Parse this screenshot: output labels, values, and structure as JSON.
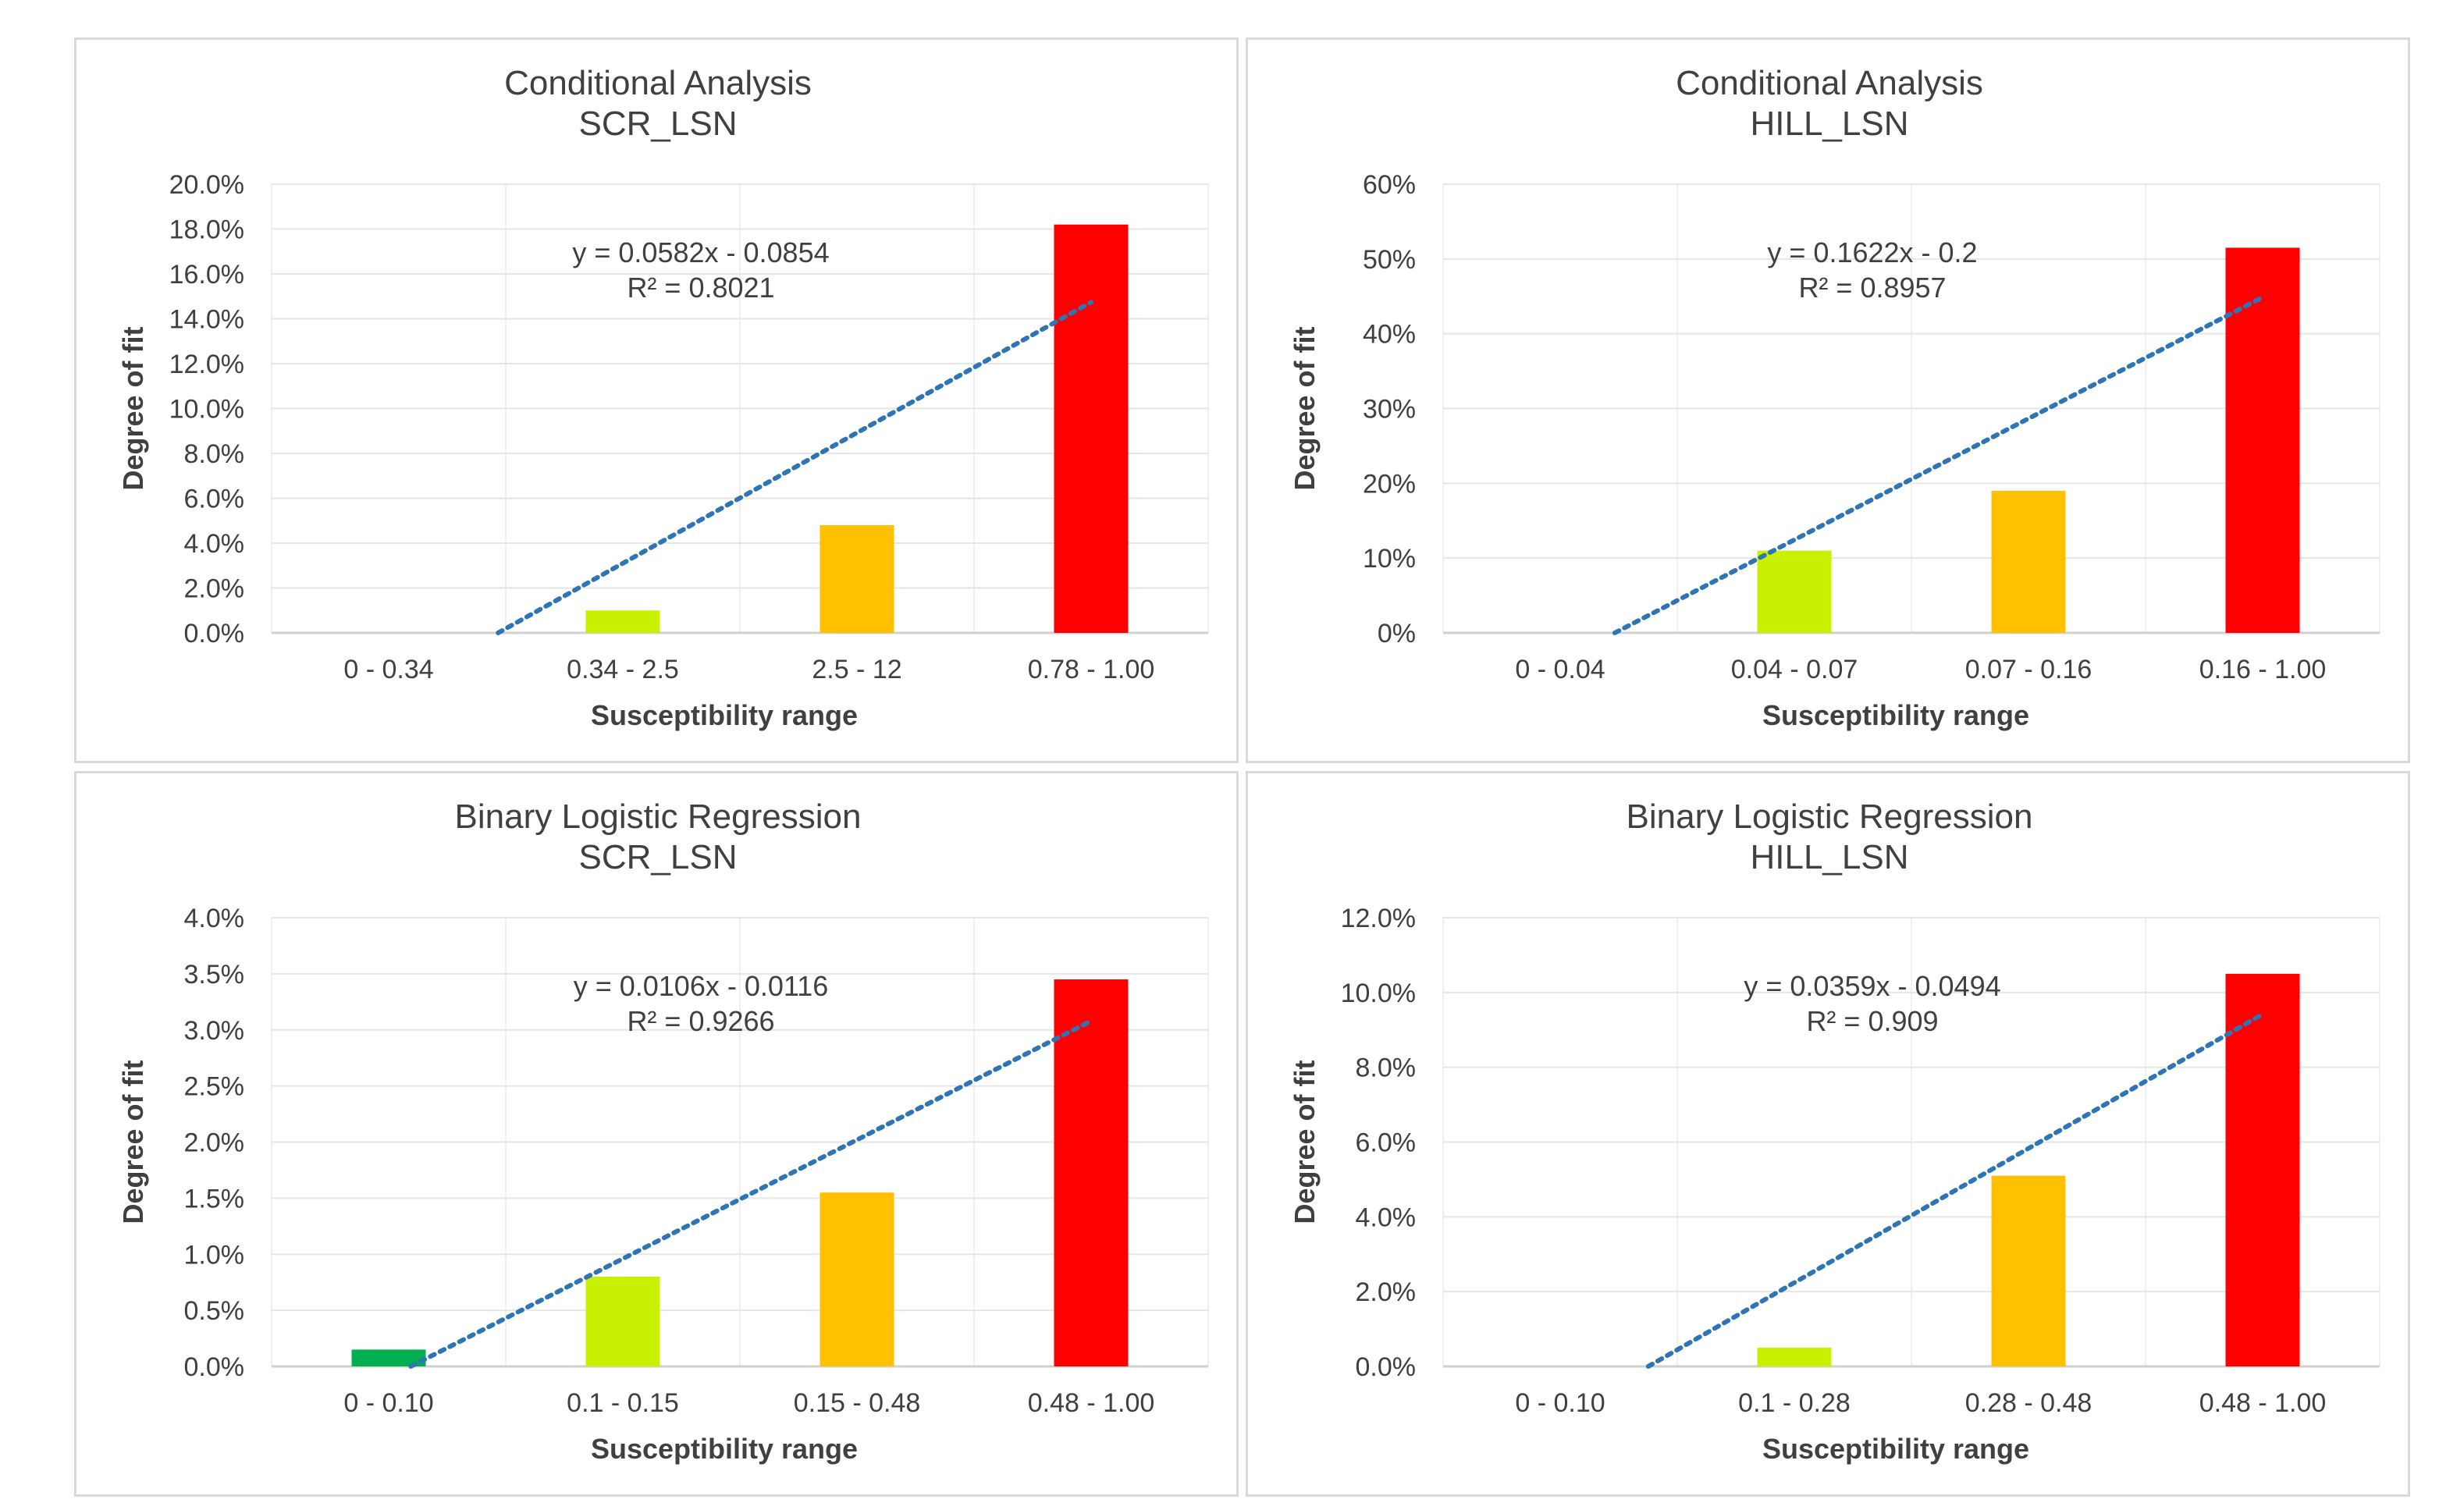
{
  "chart_data": [
    {
      "type": "bar",
      "title": "Conditional Analysis",
      "subtitle": "SCR_LSN",
      "xlabel": "Susceptibility range",
      "ylabel": "Degree of fit",
      "categories": [
        "0 - 0.34",
        "0.34 - 2.5",
        "2.5 - 12",
        "0.78 - 1.00"
      ],
      "values": [
        0.0,
        1.0,
        4.8,
        18.2
      ],
      "colors": [
        "#00b050",
        "#c8f000",
        "#ffc000",
        "#ff0000"
      ],
      "ylim": [
        0,
        20
      ],
      "yticks": [
        "0.0%",
        "2.0%",
        "4.0%",
        "6.0%",
        "8.0%",
        "10.0%",
        "12.0%",
        "14.0%",
        "16.0%",
        "18.0%",
        "20.0%"
      ],
      "trend": {
        "equation": "y = 0.0582x - 0.0854",
        "r2": "R² = 0.8021",
        "slope": 5.82,
        "intercept": -8.54
      },
      "grid": true
    },
    {
      "type": "bar",
      "title": "Conditional Analysis",
      "subtitle": "HILL_LSN",
      "xlabel": "Susceptibility range",
      "ylabel": "Degree of fit",
      "categories": [
        "0 - 0.04",
        "0.04 - 0.07",
        "0.07 - 0.16",
        "0.16 - 1.00"
      ],
      "values": [
        0.0,
        11.0,
        19.0,
        51.5
      ],
      "colors": [
        "#00b050",
        "#c8f000",
        "#ffc000",
        "#ff0000"
      ],
      "ylim": [
        0,
        60
      ],
      "yticks": [
        "0%",
        "10%",
        "20%",
        "30%",
        "40%",
        "50%",
        "60%"
      ],
      "trend": {
        "equation": "y = 0.1622x - 0.2",
        "r2": "R² = 0.8957",
        "slope": 16.22,
        "intercept": -20.0
      },
      "grid": true
    },
    {
      "type": "bar",
      "title": "Binary Logistic Regression",
      "subtitle": "SCR_LSN",
      "xlabel": "Susceptibility range",
      "ylabel": "Degree of fit",
      "categories": [
        "0 - 0.10",
        "0.1 - 0.15",
        "0.15 - 0.48",
        "0.48 - 1.00"
      ],
      "values": [
        0.15,
        0.8,
        1.55,
        3.45
      ],
      "colors": [
        "#00b050",
        "#c8f000",
        "#ffc000",
        "#ff0000"
      ],
      "ylim": [
        0,
        4
      ],
      "yticks": [
        "0.0%",
        "0.5%",
        "1.0%",
        "1.5%",
        "2.0%",
        "2.5%",
        "3.0%",
        "3.5%",
        "4.0%"
      ],
      "trend": {
        "equation": "y = 0.0106x - 0.0116",
        "r2": "R² = 0.9266",
        "slope": 1.06,
        "intercept": -1.16
      },
      "grid": true
    },
    {
      "type": "bar",
      "title": "Binary Logistic Regression",
      "subtitle": "HILL_LSN",
      "xlabel": "Susceptibility range",
      "ylabel": "Degree of fit",
      "categories": [
        "0 - 0.10",
        "0.1 - 0.28",
        "0.28 - 0.48",
        "0.48 - 1.00"
      ],
      "values": [
        0.0,
        0.5,
        5.1,
        10.5
      ],
      "colors": [
        "#00b050",
        "#c8f000",
        "#ffc000",
        "#ff0000"
      ],
      "ylim": [
        0,
        12
      ],
      "yticks": [
        "0.0%",
        "2.0%",
        "4.0%",
        "6.0%",
        "8.0%",
        "10.0%",
        "12.0%"
      ],
      "trend": {
        "equation": "y = 0.0359x - 0.0494",
        "r2": "R² = 0.909",
        "slope": 3.59,
        "intercept": -4.94
      },
      "grid": true
    }
  ]
}
